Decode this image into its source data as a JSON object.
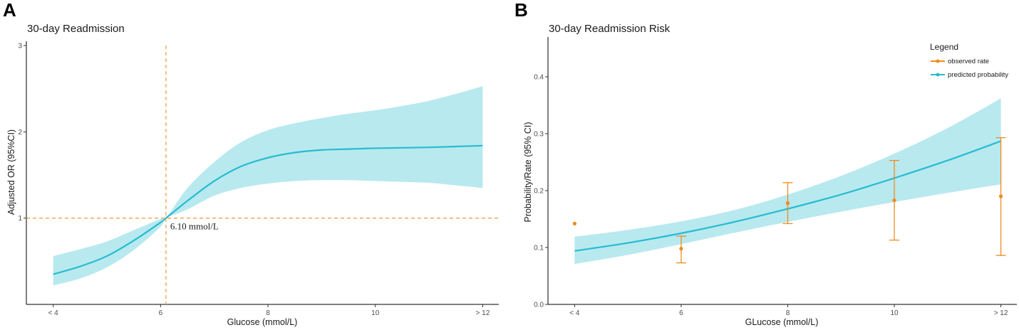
{
  "panel_a_letter": "A",
  "panel_b_letter": "B",
  "colors": {
    "band": "#b8e9ef",
    "line": "#26bcd0",
    "ref": "#f0a04b",
    "observed": "#ef8a1e"
  },
  "chart_data": [
    {
      "type": "line",
      "title": "30-day Readmission",
      "xlabel": "Glucose (mmol/L)",
      "ylabel": "Adjusted OR (95%CI)",
      "xlim": [
        3.5,
        12.3
      ],
      "ylim": [
        0,
        3.05
      ],
      "x_ticks": [
        4,
        6,
        8,
        10,
        12
      ],
      "x_tick_labels": [
        "< 4",
        "6",
        "8",
        "10",
        "> 12"
      ],
      "y_ticks": [
        1,
        2,
        3
      ],
      "y_tick_labels": [
        "1",
        "2",
        "3"
      ],
      "reference_x": 6.1,
      "reference_y": 1,
      "annotation": "6.10 mmol/L",
      "series": [
        {
          "name": "Adjusted OR",
          "x": [
            4.0,
            4.5,
            5.0,
            5.5,
            6.0,
            6.1,
            6.5,
            7.0,
            7.5,
            8.0,
            8.5,
            9.0,
            9.5,
            10.0,
            10.5,
            11.0,
            11.5,
            12.0
          ],
          "values": [
            0.35,
            0.44,
            0.56,
            0.74,
            0.95,
            1.0,
            1.2,
            1.43,
            1.6,
            1.7,
            1.76,
            1.79,
            1.8,
            1.81,
            1.815,
            1.82,
            1.83,
            1.84
          ],
          "lower": [
            0.22,
            0.3,
            0.43,
            0.63,
            0.9,
            1.0,
            1.1,
            1.26,
            1.35,
            1.4,
            1.43,
            1.44,
            1.44,
            1.43,
            1.42,
            1.41,
            1.38,
            1.35
          ],
          "upper": [
            0.56,
            0.64,
            0.73,
            0.86,
            0.99,
            1.0,
            1.35,
            1.65,
            1.88,
            2.02,
            2.1,
            2.16,
            2.21,
            2.25,
            2.3,
            2.36,
            2.44,
            2.53
          ]
        }
      ]
    },
    {
      "type": "line",
      "title": "30-day Readmission Risk",
      "xlabel": "GLucose (mmol/L)",
      "ylabel": "Probability/Rate (95% CI)",
      "xlim": [
        3.5,
        12.3
      ],
      "ylim": [
        0,
        0.47
      ],
      "x_ticks": [
        4,
        6,
        8,
        10,
        12
      ],
      "x_tick_labels": [
        "< 4",
        "6",
        "8",
        "10",
        "> 12"
      ],
      "y_ticks": [
        0.0,
        0.1,
        0.2,
        0.3,
        0.4
      ],
      "y_tick_labels": [
        "0.0",
        "0.1",
        "0.2",
        "0.3",
        "0.4"
      ],
      "legend_title": "Legend",
      "legend_position": "top-right",
      "series": [
        {
          "name": "observed rate",
          "x": [
            4,
            6,
            8,
            10,
            12
          ],
          "values": [
            0.142,
            0.098,
            0.178,
            0.183,
            0.19
          ],
          "lower": [
            null,
            0.073,
            0.142,
            0.113,
            0.086
          ],
          "upper": [
            null,
            0.12,
            0.214,
            0.253,
            0.293
          ]
        },
        {
          "name": "predicted probability",
          "x": [
            4,
            5,
            6,
            7,
            8,
            9,
            10,
            11,
            12
          ],
          "values": [
            0.094,
            0.108,
            0.125,
            0.145,
            0.168,
            0.193,
            0.222,
            0.253,
            0.287
          ],
          "lower": [
            0.071,
            0.087,
            0.106,
            0.126,
            0.145,
            0.163,
            0.18,
            0.196,
            0.211
          ],
          "upper": [
            0.119,
            0.131,
            0.146,
            0.166,
            0.193,
            0.226,
            0.265,
            0.31,
            0.362
          ]
        }
      ]
    }
  ]
}
